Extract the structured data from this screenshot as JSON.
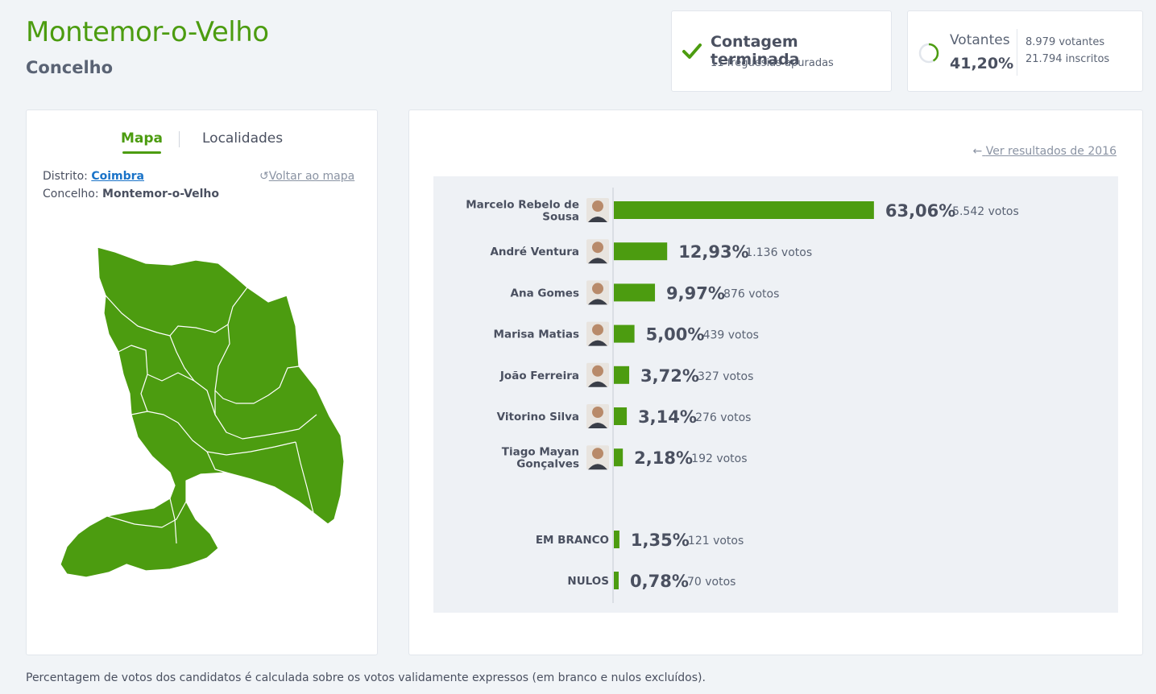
{
  "header": {
    "title": "Montemor-o-Velho",
    "subtitle": "Concelho"
  },
  "count_status": {
    "title": "Contagem terminada",
    "subtitle": "11 freguesias apuradas",
    "icon": "check-icon",
    "color": "#4c9c10"
  },
  "voters": {
    "label": "Votantes",
    "percent": "41,20%",
    "percent_value": 41.2,
    "count": "8.979 votantes",
    "registered": "21.794 inscritos"
  },
  "map_panel": {
    "tabs": [
      {
        "label": "Mapa",
        "active": true
      },
      {
        "label": "Localidades",
        "active": false
      }
    ],
    "district_label": "Distrito:",
    "district_value": "Coimbra",
    "council_label": "Concelho:",
    "council_value": "Montemor-o-Velho",
    "back_link": "Voltar ao mapa",
    "map_color": "#4c9c10"
  },
  "results": {
    "previous_link": "Ver resultados de 2016",
    "bar_color": "#4c9c10"
  },
  "chart_data": {
    "type": "bar",
    "orientation": "horizontal",
    "candidates": [
      {
        "name": "Marcelo Rebelo de Sousa",
        "percent": 63.06,
        "percent_label": "63,06%",
        "votes_label": "5.542 votos"
      },
      {
        "name": "André Ventura",
        "percent": 12.93,
        "percent_label": "12,93%",
        "votes_label": "1.136 votos"
      },
      {
        "name": "Ana Gomes",
        "percent": 9.97,
        "percent_label": "9,97%",
        "votes_label": "876 votos"
      },
      {
        "name": "Marisa Matias",
        "percent": 5.0,
        "percent_label": "5,00%",
        "votes_label": "439 votos"
      },
      {
        "name": "João Ferreira",
        "percent": 3.72,
        "percent_label": "3,72%",
        "votes_label": "327 votos"
      },
      {
        "name": "Vitorino Silva",
        "percent": 3.14,
        "percent_label": "3,14%",
        "votes_label": "276 votos"
      },
      {
        "name": "Tiago Mayan Gonçalves",
        "percent": 2.18,
        "percent_label": "2,18%",
        "votes_label": "192 votos"
      }
    ],
    "others": [
      {
        "name": "EM BRANCO",
        "percent": 1.35,
        "percent_label": "1,35%",
        "votes_label": "121 votos"
      },
      {
        "name": "NULOS",
        "percent": 0.78,
        "percent_label": "0,78%",
        "votes_label": "70 votos"
      }
    ]
  },
  "footnote": "Percentagem de votos dos candidatos é calculada sobre os votos validamente expressos (em branco e nulos excluídos)."
}
